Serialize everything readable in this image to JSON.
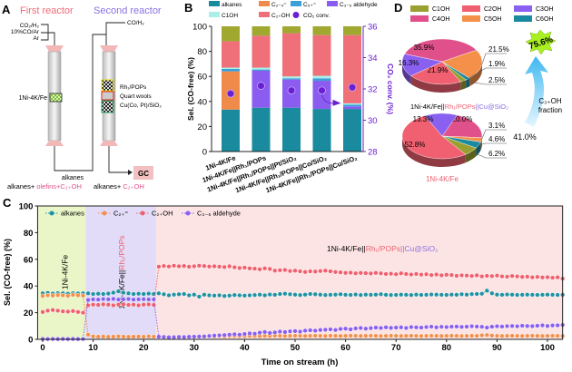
{
  "panels": {
    "a": "A",
    "b": "B",
    "c": "C",
    "d": "D"
  },
  "panel_a": {
    "first_reactor": "First reactor",
    "second_reactor": "Second reactor",
    "feed1": "CO₂/H₂",
    "feed2": "10%CO/Ar",
    "feed3": "Ar",
    "feed_second": "CO/H₂",
    "catalyst1": "1Ni-4K/Fe",
    "bed1": "Rh₁/POPs",
    "bed2": "Quart wools",
    "bed3": "Cu(Co, Pt)/SiO₂",
    "link": "alkanes",
    "gc": "GC",
    "out1_a": "alkanes+ ",
    "out1_b": "olefins+C₂₊OH",
    "out2_a": "alkanes+ ",
    "out2_b": "C₂₊OH",
    "colors": {
      "first": "#f06a7a",
      "second": "#8a70e0",
      "pink": "#e0508a"
    }
  },
  "chart_data": [
    {
      "id": "B",
      "type": "bar",
      "stacked": true,
      "ylabel": "Sel. (CO-free) (%)",
      "y2label": "CO₂ conv. (%)",
      "ylim": [
        0,
        100
      ],
      "y2lim": [
        28,
        36
      ],
      "yticks": [
        "0",
        "20",
        "40",
        "60",
        "80",
        "100"
      ],
      "y2ticks": [
        "28",
        "30",
        "32",
        "34",
        "36"
      ],
      "categories": [
        "1Ni-4K/Fe",
        "1Ni-4K/Fe||Rh₁/POPs",
        "1Ni-4K/Fe||Rh₁/POPs||Pt/SiO₂",
        "1Ni-4K/Fe||Rh₁/POPs||Co/SiO₂",
        "1Ni-4K/Fe||Rh₁/POPs||Cu/SiO₂"
      ],
      "series": [
        {
          "name": "alkanes",
          "color": "#1a8a9e",
          "values": [
            33.5,
            35,
            35,
            34,
            34
          ]
        },
        {
          "name": "C₂₋₄⁼",
          "color": "#f08a4b",
          "values": [
            30.5,
            0,
            0,
            0,
            0
          ]
        },
        {
          "name": "C₃₋₆ aldehyde",
          "color": "#8a5cf0",
          "values": [
            0,
            29.5,
            22.5,
            22.5,
            2
          ]
        },
        {
          "name": "C₅₊⁼",
          "color": "#3aa0d8",
          "values": [
            2,
            1,
            1,
            2,
            1.5
          ]
        },
        {
          "name": "C1OH",
          "color": "#a8f0e8",
          "values": [
            1,
            1.5,
            1.5,
            2,
            1
          ]
        },
        {
          "name": "C₂₊OH",
          "color": "#f0707a",
          "values": [
            21,
            25.5,
            34.5,
            32.5,
            54.5
          ]
        },
        {
          "name": "",
          "color": "#a0a830",
          "values": [
            12,
            7.5,
            5.5,
            7,
            7
          ]
        }
      ],
      "legend": [
        "alkanes",
        "C₂₋₄⁼",
        "C₅₊⁼",
        "C₃₋₆ aldehyde",
        "C1OH",
        "C₂₊OH",
        "CO₂ conv."
      ],
      "co2_conv": {
        "name": "CO₂ conv.",
        "color": "#6a1fd0",
        "values": [
          31.7,
          32.2,
          31.9,
          31.9,
          32.1
        ]
      }
    },
    {
      "id": "C",
      "type": "scatter",
      "xlabel": "Time on stream (h)",
      "ylabel": "Sel. (CO-free) (%)",
      "xlim": [
        -1,
        103
      ],
      "ylim": [
        0,
        100
      ],
      "xticks": [
        "0",
        "10",
        "20",
        "30",
        "40",
        "50",
        "60",
        "70",
        "80",
        "90",
        "100"
      ],
      "yticks": [
        "0",
        "20",
        "40",
        "60",
        "80",
        "100"
      ],
      "regions": [
        {
          "from": -1,
          "to": 8.5,
          "color": "#eaf5c8",
          "label": "1Ni-4K/Fe"
        },
        {
          "from": 8.5,
          "to": 22.5,
          "color": "#e2dcf8",
          "label_a": "1Ni-4K/Fe||",
          "label_b": "Rh₁/POPs"
        },
        {
          "from": 22.5,
          "to": 103,
          "color": "#fde4e4",
          "label_a": "1Ni-4K/Fe||",
          "label_b": "Rh₁/POPs",
          "label_c": "||Cu@SiO₂"
        }
      ],
      "series": [
        {
          "name": "alkanes",
          "color": "#1f93a3",
          "segments": [
            {
              "t0": 0,
              "t1": 8,
              "values": [
                34.5,
                34.8,
                34.3,
                34.6,
                34.5,
                34.2,
                34.6,
                34.4,
                34.5
              ]
            },
            {
              "t0": 9,
              "t1": 22,
              "values": [
                34.5,
                34,
                34.2,
                34,
                34.3,
                35,
                36,
                35,
                34.5,
                34,
                34.2,
                34,
                34.3,
                34
              ]
            },
            {
              "t0": 23,
              "t1": 103,
              "values": [
                34.5,
                33.8,
                33,
                33.5,
                33.8,
                34,
                33,
                33.5,
                32,
                33.5,
                33,
                32.8,
                33,
                32.5,
                32.8,
                33.2,
                33,
                32.8,
                33,
                33.2,
                33.5,
                33,
                33.6,
                33.4,
                34,
                34.2,
                33.8,
                33.5,
                33.2,
                33.5,
                34,
                33.8,
                33.5,
                33.2,
                33.4,
                33.5,
                33.8,
                33.4,
                33.3,
                33.6,
                33.2,
                33.5,
                33.4,
                33.5,
                33.8,
                33.4,
                33.2,
                33.3,
                33.5,
                33.4,
                33.2,
                33.5,
                33.3,
                33.4,
                33.6,
                33.5,
                33.4,
                33.3,
                33.5,
                33.4,
                33.8,
                33.5,
                33.9,
                34,
                34.2,
                36.5,
                34.5,
                33.5,
                33.4,
                33.6,
                33.5,
                33.3,
                33.4,
                33.5,
                33.4,
                33.3,
                33.4,
                33.5,
                33.4,
                33.3,
                33.4
              ]
            }
          ]
        },
        {
          "name": "C₂₊⁼",
          "color": "#f4904a",
          "segments": [
            {
              "t0": 0,
              "t1": 8,
              "values": [
                32.5,
                33,
                32.8,
                33.2,
                33,
                32.6,
                33.4,
                33,
                32.8
              ]
            },
            {
              "t0": 9,
              "t1": 22,
              "values": [
                3.5,
                2.2,
                2,
                2.1,
                1.9,
                2,
                2.2,
                2,
                1.9,
                2,
                2.1,
                2,
                2.2,
                2
              ]
            },
            {
              "t0": 23,
              "t1": 103,
              "values": [
                2,
                1.8,
                1.9,
                2,
                1.8,
                1.9,
                2,
                1.8,
                1.9,
                2,
                2.2,
                2,
                2.3,
                2.1,
                2.4,
                2.5,
                2.3,
                2.4,
                2.6,
                2.5,
                2.4,
                2.6,
                2.5,
                2.7,
                2.6,
                2.5,
                2.6,
                2.7,
                2.6,
                2.5,
                2.6,
                2.7,
                2.6,
                2.5,
                2.7,
                2.6,
                2.5,
                2.6,
                2.7,
                2.6,
                2.5,
                2.6,
                2.7,
                2.6,
                2.5,
                2.6,
                2.7,
                2.6,
                2.5,
                2.6,
                2.7,
                2.6,
                2.5,
                2.6,
                2.7,
                2.6,
                2.5,
                2.6,
                2.7,
                2.6,
                2.5,
                2.6,
                2.7,
                2.6,
                3,
                3.2,
                2.8,
                2.6,
                2.5,
                2.6,
                2.7,
                2.6,
                2.5,
                2.6,
                2.7,
                2.6,
                2.5,
                2.6,
                2.7,
                2.6,
                2.5
              ]
            }
          ]
        },
        {
          "name": "C₂₊OH",
          "color": "#f0606e",
          "segments": [
            {
              "t0": 0,
              "t1": 8,
              "values": [
                20.5,
                21.5,
                22,
                21.5,
                21,
                20.8,
                21.2,
                20.5,
                20
              ]
            },
            {
              "t0": 9,
              "t1": 22,
              "values": [
                25.5,
                26,
                25.8,
                26.2,
                26,
                25.5,
                26,
                26.3,
                25.8,
                26,
                25.5,
                26,
                26.2,
                25.8
              ]
            },
            {
              "t0": 23,
              "t1": 103,
              "values": [
                54.5,
                55,
                54.6,
                55.2,
                54.8,
                55,
                54.5,
                54.8,
                55.2,
                55,
                54.6,
                54.8,
                54.5,
                54.2,
                54.8,
                54,
                53.5,
                53.8,
                53.2,
                53,
                52.5,
                53.2,
                52.8,
                51.5,
                51.8,
                52,
                51.2,
                51.5,
                51,
                50.5,
                51,
                50.8,
                51.2,
                51.5,
                51,
                50.5,
                50.2,
                49.8,
                50,
                49.5,
                49.8,
                49.6,
                49.4,
                49.8,
                49.5,
                49,
                49.2,
                48.8,
                49.5,
                49,
                48.6,
                49,
                48.5,
                48.8,
                48.2,
                48.6,
                48,
                48.4,
                48.2,
                47.6,
                48,
                47.8,
                47.5,
                48,
                47.2,
                47.6,
                47.4,
                47.8,
                47.2,
                47,
                47.5,
                47.2,
                46.8,
                47,
                46.5,
                46.8,
                46.4,
                46.6,
                46.2,
                46.5,
                45.5
              ]
            }
          ]
        },
        {
          "name": "C₃₋₆ aldehyde",
          "color": "#8a60f0",
          "segments": [
            {
              "t0": 0,
              "t1": 8,
              "values": [
                0.3,
                0.2,
                0.3,
                0.2,
                0.3,
                0.2,
                0.3,
                0.2,
                0.3
              ]
            },
            {
              "t0": 9,
              "t1": 22,
              "values": [
                29.5,
                30,
                29.8,
                30.2,
                30,
                30.3,
                29.8,
                30,
                30.2,
                29.8,
                30,
                30.1,
                29.9,
                30
              ]
            },
            {
              "t0": 23,
              "t1": 103,
              "values": [
                2,
                1.8,
                1.5,
                1.6,
                1.8,
                1.7,
                1.9,
                2,
                2.1,
                2.2,
                2.5,
                2.8,
                3,
                3.2,
                3.5,
                3.8,
                3.5,
                4,
                4.5,
                4.2,
                5,
                5.5,
                4.8,
                5.2,
                5.8,
                5.5,
                6,
                6.2,
                5.8,
                6.5,
                6.8,
                6.5,
                7,
                7.2,
                7.5,
                7,
                7.8,
                8,
                7.5,
                8.2,
                8.5,
                8,
                8.4,
                8.8,
                8.5,
                9,
                8.6,
                8.8,
                9,
                8.5,
                9.2,
                9,
                8.8,
                9.2,
                9.5,
                9,
                9.4,
                9.2,
                9.5,
                9.6,
                9.3,
                9.5,
                9.8,
                9.6,
                9.4,
                8.8,
                9.5,
                9.8,
                9.6,
                9.9,
                10,
                9.8,
                10.2,
                10,
                9.9,
                10.2,
                10.5,
                10,
                10.4,
                10.5,
                10.8
              ]
            }
          ]
        }
      ]
    },
    {
      "id": "D",
      "type": "pie",
      "legend": [
        "C1OH",
        "C2OH",
        "C3OH",
        "C4OH",
        "C5OH",
        "C6OH"
      ],
      "colors": {
        "C1OH": "#9aa030",
        "C2OH": "#f06070",
        "C3OH": "#8a60f0",
        "C4OH": "#e0508a",
        "C5OH": "#f4904a",
        "C6OH": "#1a8aa0"
      },
      "pies": [
        {
          "title_a": "1Ni-4K/Fe||",
          "title_b": "Rh₁/POPs",
          "title_c": "||Cu@SiO₂",
          "slices": [
            {
              "name": "C4OH",
              "value": 35.9,
              "label": "35.9%"
            },
            {
              "name": "C5OH",
              "value": 21.5,
              "label": "21.5%"
            },
            {
              "name": "C6OH",
              "value": 1.9,
              "label": "1.9%"
            },
            {
              "name": "C1OH",
              "value": 2.5,
              "label": "2.5%"
            },
            {
              "name": "C2OH",
              "value": 21.9,
              "label": "21.9%"
            },
            {
              "name": "C3OH",
              "value": 16.3,
              "label": "16.3%"
            }
          ]
        },
        {
          "title_a": "1Ni-4K/Fe",
          "slices": [
            {
              "name": "C4OH",
              "value": 20.0,
              "label": "20.0%"
            },
            {
              "name": "C5OH",
              "value": 3.1,
              "label": "3.1%"
            },
            {
              "name": "C6OH",
              "value": 4.6,
              "label": "4.6%"
            },
            {
              "name": "C1OH",
              "value": 6.2,
              "label": "6.2%"
            },
            {
              "name": "C2OH",
              "value": 52.8,
              "label": "52.8%"
            },
            {
              "name": "C3OH",
              "value": 13.3,
              "label": "13.3%"
            }
          ]
        }
      ],
      "fraction_high": "75.6%",
      "fraction_low": "41.0%",
      "fraction_label_1": "C₃₊OH",
      "fraction_label_2": "fraction"
    }
  ]
}
